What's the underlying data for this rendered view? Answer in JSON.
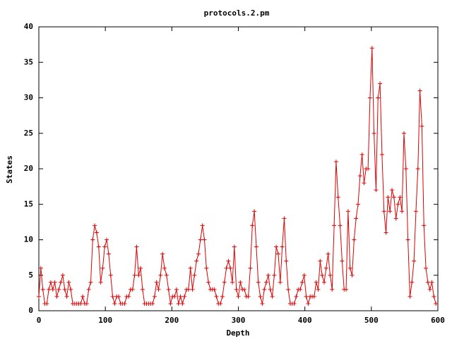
{
  "chart_data": {
    "type": "line",
    "title": "protocols.2.pm",
    "xlabel": "Depth",
    "ylabel": "States",
    "x": [
      0,
      3,
      6,
      9,
      12,
      15,
      18,
      21,
      24,
      27,
      30,
      33,
      36,
      39,
      42,
      45,
      48,
      51,
      54,
      57,
      60,
      63,
      66,
      69,
      72,
      75,
      78,
      81,
      84,
      87,
      90,
      93,
      96,
      99,
      102,
      105,
      108,
      111,
      114,
      117,
      120,
      123,
      126,
      129,
      132,
      135,
      138,
      141,
      144,
      147,
      150,
      153,
      156,
      159,
      162,
      165,
      168,
      171,
      174,
      177,
      180,
      183,
      186,
      189,
      192,
      195,
      198,
      201,
      204,
      207,
      210,
      213,
      216,
      219,
      222,
      225,
      228,
      231,
      234,
      237,
      240,
      243,
      246,
      249,
      252,
      255,
      258,
      261,
      264,
      267,
      270,
      273,
      276,
      279,
      282,
      285,
      288,
      291,
      294,
      297,
      300,
      303,
      306,
      309,
      312,
      315,
      318,
      321,
      324,
      327,
      330,
      333,
      336,
      339,
      342,
      345,
      348,
      351,
      354,
      357,
      360,
      363,
      366,
      369,
      372,
      375,
      378,
      381,
      384,
      387,
      390,
      393,
      396,
      399,
      402,
      405,
      408,
      411,
      414,
      417,
      420,
      423,
      426,
      429,
      432,
      435,
      438,
      441,
      444,
      447,
      450,
      453,
      456,
      459,
      462,
      465,
      468,
      471,
      474,
      477,
      480,
      483,
      486,
      489,
      492,
      495,
      498,
      501,
      504,
      507,
      510,
      513,
      516,
      519,
      522,
      525,
      528,
      531,
      534,
      537,
      540,
      543,
      546,
      549,
      552,
      555,
      558,
      561,
      564,
      567,
      570,
      573,
      576,
      579,
      582,
      585,
      588,
      591,
      594,
      597
    ],
    "series": [
      {
        "color": "#e00000",
        "values": [
          2,
          6,
          3,
          1,
          1,
          3,
          4,
          3,
          4,
          2,
          3,
          4,
          5,
          3,
          2,
          4,
          3,
          1,
          1,
          1,
          1,
          1,
          2,
          1,
          1,
          3,
          4,
          10,
          12,
          11,
          9,
          4,
          6,
          9,
          10,
          8,
          5,
          2,
          1,
          2,
          2,
          1,
          1,
          1,
          2,
          2,
          3,
          3,
          5,
          9,
          5,
          6,
          3,
          1,
          1,
          1,
          1,
          1,
          2,
          4,
          3,
          5,
          8,
          6,
          5,
          3,
          1,
          2,
          2,
          3,
          1,
          2,
          1,
          2,
          3,
          3,
          6,
          3,
          5,
          7,
          8,
          10,
          12,
          10,
          6,
          4,
          3,
          3,
          3,
          2,
          1,
          1,
          2,
          4,
          6,
          7,
          6,
          4,
          9,
          3,
          2,
          4,
          3,
          3,
          2,
          2,
          6,
          12,
          14,
          9,
          4,
          2,
          1,
          3,
          4,
          5,
          3,
          2,
          5,
          9,
          8,
          4,
          9,
          13,
          7,
          3,
          1,
          1,
          1,
          2,
          3,
          3,
          4,
          5,
          2,
          1,
          2,
          2,
          2,
          4,
          3,
          7,
          5,
          4,
          6,
          8,
          5,
          3,
          12,
          21,
          16,
          12,
          7,
          3,
          3,
          14,
          6,
          5,
          10,
          13,
          15,
          19,
          22,
          18,
          20,
          20,
          30,
          37,
          25,
          17,
          30,
          32,
          22,
          14,
          11,
          16,
          14,
          17,
          16,
          13,
          15,
          16,
          14,
          25,
          20,
          10,
          2,
          4,
          7,
          14,
          20,
          31,
          26,
          12,
          6,
          4,
          3,
          4,
          2,
          1
        ]
      }
    ],
    "xlim": [
      0,
      600
    ],
    "ylim": [
      0,
      40
    ],
    "xticks": [
      0,
      100,
      200,
      300,
      400,
      500,
      600
    ],
    "yticks": [
      0,
      5,
      10,
      15,
      20,
      25,
      30,
      35,
      40
    ]
  }
}
